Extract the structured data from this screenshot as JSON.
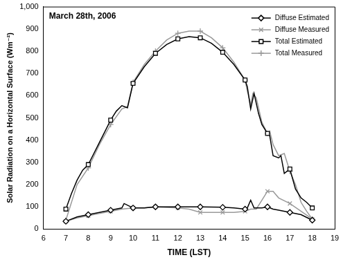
{
  "chart_data": {
    "type": "line",
    "title": "March 28th, 2006",
    "x_label": "TIME (LST)",
    "y_label": "Solar Radiation on a Horizontal Surface (Wm⁻²)",
    "xlim": [
      6,
      19
    ],
    "xticks": [
      6,
      7,
      8,
      9,
      10,
      11,
      12,
      13,
      14,
      15,
      16,
      17,
      18,
      19
    ],
    "ylim": [
      0,
      1000
    ],
    "yticks": [
      0,
      100,
      200,
      300,
      400,
      500,
      600,
      700,
      800,
      900,
      1000
    ],
    "grid": false,
    "legend": "upper right",
    "series": [
      {
        "name": "Diffuse Estimated",
        "color": "#000000",
        "marker": "diamond",
        "x": [
          7,
          7.5,
          8,
          8.5,
          9,
          9.5,
          9.6,
          9.8,
          10,
          10.5,
          11,
          12,
          13,
          14,
          14.5,
          15,
          15.1,
          15.25,
          15.4,
          15.75,
          16,
          16.25,
          16.5,
          17,
          17.5,
          18
        ],
        "values": [
          35,
          55,
          65,
          75,
          85,
          95,
          115,
          105,
          95,
          95,
          100,
          100,
          100,
          98,
          95,
          90,
          95,
          130,
          95,
          95,
          100,
          90,
          85,
          75,
          65,
          40
        ]
      },
      {
        "name": "Diffuse Measured",
        "color": "#999999",
        "marker": "x",
        "x": [
          7,
          7.5,
          8,
          8.5,
          9,
          9.5,
          10,
          10.5,
          11,
          12,
          12.5,
          13,
          13.5,
          14,
          14.5,
          15,
          15.25,
          15.5,
          15.75,
          16,
          16.25,
          16.5,
          17,
          17.5,
          18
        ],
        "values": [
          35,
          50,
          60,
          70,
          80,
          90,
          95,
          95,
          100,
          95,
          90,
          75,
          75,
          75,
          75,
          80,
          90,
          90,
          130,
          170,
          170,
          140,
          115,
          80,
          45
        ]
      },
      {
        "name": "Total Estimated",
        "color": "#000000",
        "marker": "square",
        "x": [
          7,
          7.25,
          7.5,
          7.75,
          8,
          8.25,
          8.5,
          8.75,
          9,
          9.25,
          9.5,
          9.75,
          10,
          10.5,
          11,
          11.5,
          12,
          12.5,
          13,
          13.5,
          14,
          14.5,
          15,
          15.1,
          15.25,
          15.4,
          15.6,
          15.75,
          16,
          16.1,
          16.25,
          16.5,
          16.6,
          16.75,
          17,
          17.25,
          17.5,
          17.75,
          18
        ],
        "values": [
          90,
          160,
          220,
          265,
          290,
          340,
          390,
          440,
          490,
          530,
          555,
          545,
          655,
          730,
          790,
          830,
          855,
          865,
          860,
          835,
          795,
          740,
          670,
          640,
          540,
          610,
          520,
          470,
          430,
          420,
          330,
          320,
          330,
          250,
          270,
          180,
          140,
          120,
          95
        ]
      },
      {
        "name": "Total Measured",
        "color": "#999999",
        "marker": "plus",
        "x": [
          7,
          7.5,
          8,
          8.5,
          9,
          9.5,
          9.75,
          10,
          10.5,
          11,
          11.5,
          12,
          12.5,
          13,
          13.5,
          14,
          14.5,
          15,
          15.1,
          15.25,
          15.35,
          15.5,
          15.75,
          16,
          16.1,
          16.25,
          16.5,
          16.75,
          17,
          17.25,
          17.5,
          17.75,
          18
        ],
        "values": [
          40,
          200,
          275,
          380,
          470,
          540,
          550,
          660,
          740,
          800,
          850,
          880,
          890,
          890,
          860,
          815,
          750,
          670,
          620,
          560,
          610,
          590,
          480,
          430,
          440,
          380,
          330,
          340,
          260,
          200,
          120,
          80,
          45
        ]
      }
    ]
  }
}
